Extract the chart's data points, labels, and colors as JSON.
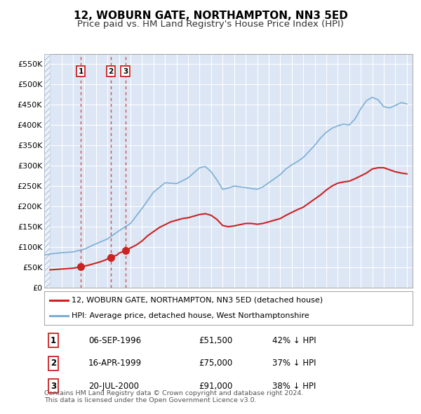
{
  "title": "12, WOBURN GATE, NORTHAMPTON, NN3 5ED",
  "subtitle": "Price paid vs. HM Land Registry's House Price Index (HPI)",
  "title_fontsize": 11,
  "subtitle_fontsize": 9.5,
  "background_color": "#ffffff",
  "plot_bg_color": "#dce6f5",
  "hatch_color": "#b8c8de",
  "grid_color": "#ffffff",
  "ylim": [
    0,
    575000
  ],
  "yticks": [
    0,
    50000,
    100000,
    150000,
    200000,
    250000,
    300000,
    350000,
    400000,
    450000,
    500000,
    550000
  ],
  "ytick_labels": [
    "£0",
    "£50K",
    "£100K",
    "£150K",
    "£200K",
    "£250K",
    "£300K",
    "£350K",
    "£400K",
    "£450K",
    "£500K",
    "£550K"
  ],
  "xlim_start": 1993.5,
  "xlim_end": 2025.5,
  "xticks": [
    1994,
    1995,
    1996,
    1997,
    1998,
    1999,
    2000,
    2001,
    2002,
    2003,
    2004,
    2005,
    2006,
    2007,
    2008,
    2009,
    2010,
    2011,
    2012,
    2013,
    2014,
    2015,
    2016,
    2017,
    2018,
    2019,
    2020,
    2021,
    2022,
    2023,
    2024,
    2025
  ],
  "hpi_color": "#7bafd4",
  "price_color": "#cc2222",
  "sale_marker_color": "#cc2222",
  "vline_color": "#cc3333",
  "transactions": [
    {
      "year": 1996.68,
      "price": 51500,
      "label": "1"
    },
    {
      "year": 1999.29,
      "price": 75000,
      "label": "2"
    },
    {
      "year": 2000.55,
      "price": 91000,
      "label": "3"
    }
  ],
  "legend_entries": [
    {
      "label": "12, WOBURN GATE, NORTHAMPTON, NN3 5ED (detached house)",
      "color": "#cc2222"
    },
    {
      "label": "HPI: Average price, detached house, West Northamptonshire",
      "color": "#7bafd4"
    }
  ],
  "table_data": [
    {
      "num": "1",
      "date": "06-SEP-1996",
      "price": "£51,500",
      "hpi": "42% ↓ HPI"
    },
    {
      "num": "2",
      "date": "16-APR-1999",
      "price": "£75,000",
      "hpi": "37% ↓ HPI"
    },
    {
      "num": "3",
      "date": "20-JUL-2000",
      "price": "£91,000",
      "hpi": "38% ↓ HPI"
    }
  ],
  "footer": "Contains HM Land Registry data © Crown copyright and database right 2024.\nThis data is licensed under the Open Government Licence v3.0.",
  "hpi_data": {
    "years": [
      1993.5,
      1994.0,
      1995.0,
      1996.0,
      1997.0,
      1998.0,
      1999.0,
      2000.0,
      2001.0,
      2002.0,
      2003.0,
      2004.0,
      2005.0,
      2006.0,
      2007.0,
      2007.5,
      2008.0,
      2008.5,
      2009.0,
      2009.5,
      2010.0,
      2010.5,
      2011.0,
      2011.5,
      2012.0,
      2012.5,
      2013.0,
      2013.5,
      2014.0,
      2014.5,
      2015.0,
      2015.5,
      2016.0,
      2016.5,
      2017.0,
      2017.5,
      2018.0,
      2018.5,
      2019.0,
      2019.5,
      2020.0,
      2020.5,
      2021.0,
      2021.5,
      2022.0,
      2022.5,
      2023.0,
      2023.5,
      2024.0,
      2024.5,
      2025.0
    ],
    "prices": [
      80000,
      83000,
      86000,
      88000,
      95000,
      108000,
      120000,
      140000,
      158000,
      195000,
      235000,
      258000,
      256000,
      270000,
      295000,
      298000,
      285000,
      265000,
      242000,
      245000,
      250000,
      248000,
      246000,
      244000,
      242000,
      248000,
      258000,
      268000,
      278000,
      292000,
      302000,
      310000,
      320000,
      335000,
      350000,
      368000,
      382000,
      392000,
      398000,
      402000,
      400000,
      415000,
      440000,
      460000,
      468000,
      462000,
      445000,
      442000,
      448000,
      455000,
      452000
    ]
  },
  "price_data": {
    "years": [
      1994.0,
      1996.0,
      1996.68,
      1997.3,
      1997.8,
      1998.3,
      1998.8,
      1999.29,
      1999.8,
      2000.0,
      2000.55,
      2001.0,
      2001.5,
      2002.0,
      2002.5,
      2003.0,
      2003.5,
      2004.0,
      2004.5,
      2005.0,
      2005.5,
      2006.0,
      2006.5,
      2007.0,
      2007.5,
      2008.0,
      2008.5,
      2009.0,
      2009.5,
      2010.0,
      2010.5,
      2011.0,
      2011.5,
      2012.0,
      2012.5,
      2013.0,
      2013.5,
      2014.0,
      2014.5,
      2015.0,
      2015.5,
      2016.0,
      2016.5,
      2017.0,
      2017.5,
      2018.0,
      2018.5,
      2019.0,
      2019.5,
      2020.0,
      2020.5,
      2021.0,
      2021.5,
      2022.0,
      2022.5,
      2023.0,
      2023.5,
      2024.0,
      2024.5,
      2025.0
    ],
    "prices": [
      44000,
      48000,
      51500,
      55000,
      59000,
      63000,
      68000,
      75000,
      80000,
      85000,
      91000,
      98000,
      105000,
      115000,
      128000,
      138000,
      148000,
      155000,
      162000,
      166000,
      170000,
      172000,
      176000,
      180000,
      182000,
      178000,
      168000,
      153000,
      150000,
      152000,
      155000,
      158000,
      158000,
      156000,
      158000,
      162000,
      166000,
      170000,
      178000,
      185000,
      192000,
      198000,
      208000,
      218000,
      228000,
      240000,
      250000,
      257000,
      260000,
      262000,
      268000,
      275000,
      282000,
      292000,
      295000,
      295000,
      290000,
      285000,
      282000,
      280000
    ]
  }
}
